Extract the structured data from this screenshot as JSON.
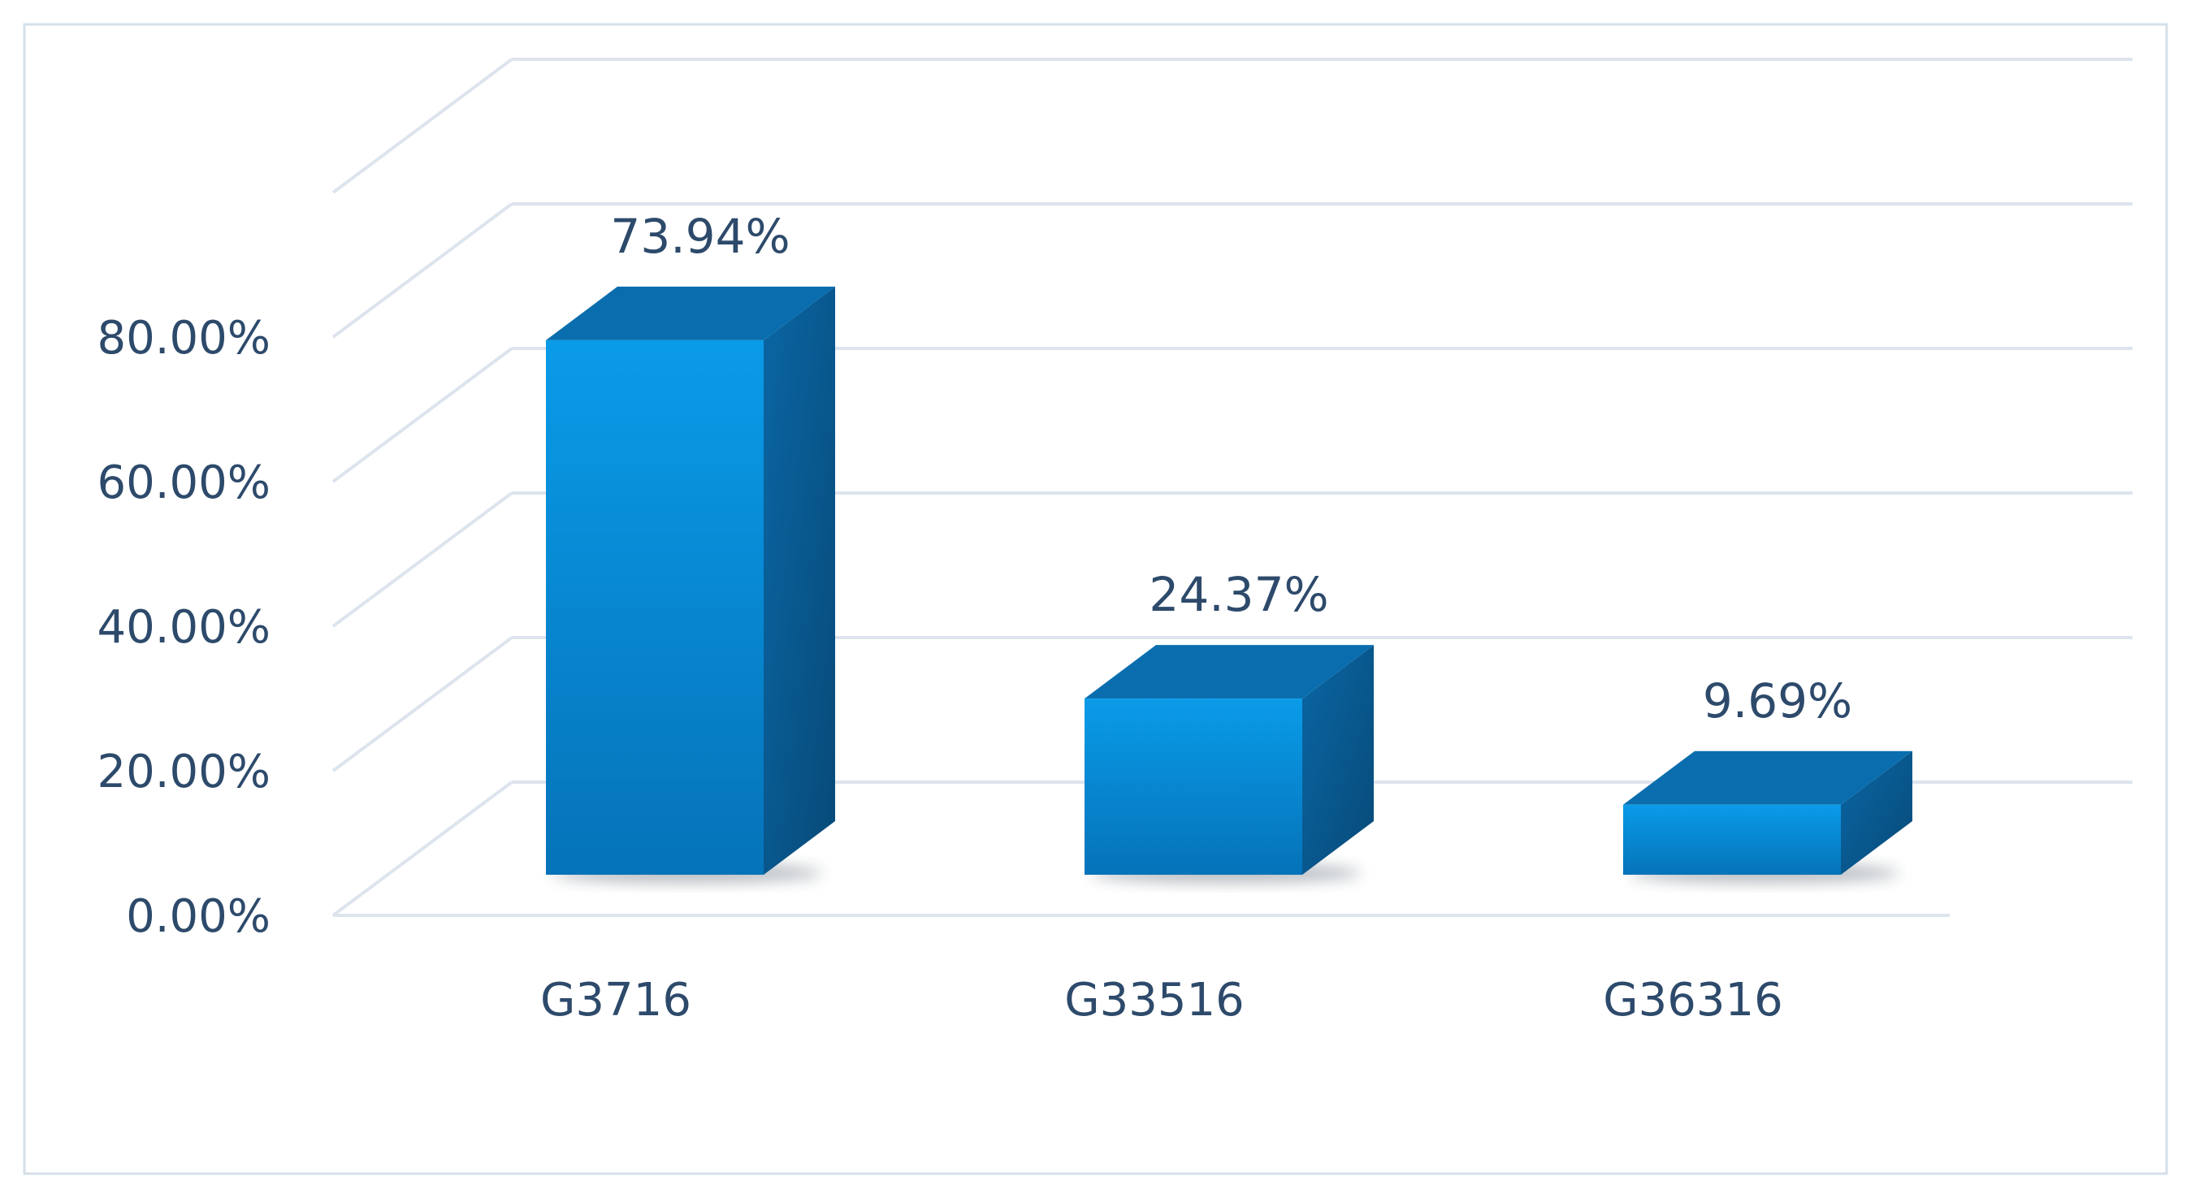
{
  "chart_data": {
    "type": "bar",
    "style": "3d-column",
    "categories": [
      "G3716",
      "G33516",
      "G36316"
    ],
    "values": [
      73.94,
      24.37,
      9.69
    ],
    "data_labels": [
      "73.94%",
      "24.37%",
      "9.69%"
    ],
    "y_ticks": [
      0,
      20,
      40,
      60,
      80
    ],
    "y_tick_labels": [
      "0.00%",
      "20.00%",
      "40.00%",
      "60.00%",
      "80.00%"
    ],
    "ylim": [
      0,
      80
    ],
    "title": "",
    "xlabel": "",
    "ylabel": "",
    "grid": true,
    "legend": "none",
    "colors": {
      "bar_front_top": "#0a9be8",
      "bar_front_bottom": "#0573b9",
      "bar_top": "#0a6eae",
      "bar_side": "#0a5b92",
      "gridline": "#dde4ee",
      "text": "#2d4a6b",
      "frame": "#d6e0ea"
    }
  }
}
